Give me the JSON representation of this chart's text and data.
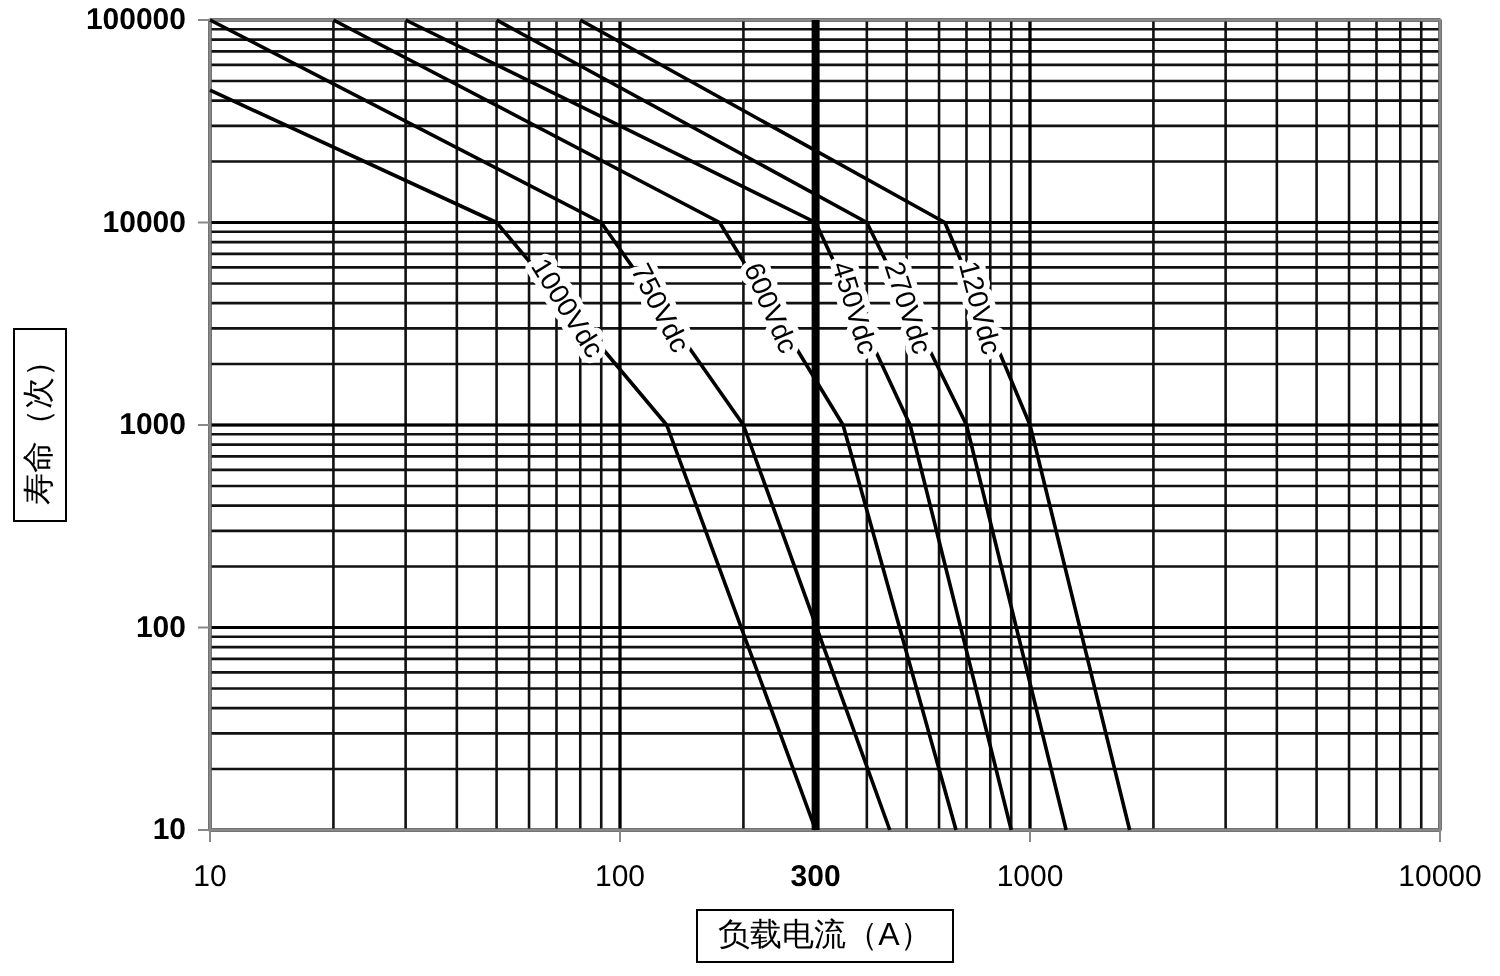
{
  "chart_data": {
    "type": "line",
    "xlabel": "负载电流（A）",
    "ylabel": "寿命（次）",
    "log": "xy",
    "grid": true,
    "marker": "none",
    "line_style": "solid",
    "xlim": [
      10,
      10000
    ],
    "xticks": [
      10,
      100,
      1000,
      10000
    ],
    "ylim": [
      10,
      100000
    ],
    "yticks": [
      10,
      100,
      1000,
      10000,
      100000
    ],
    "series": [
      {
        "name": "1000Vdc",
        "color": "#000000",
        "x": [
          10,
          50,
          130,
          300
        ],
        "values": [
          45000,
          10000,
          1000,
          10
        ]
      },
      {
        "name": "750Vdc",
        "color": "#000000",
        "x": [
          10,
          90,
          200,
          455
        ],
        "values": [
          100000,
          10000,
          1000,
          10
        ]
      },
      {
        "name": "600Vdc",
        "color": "#000000",
        "x": [
          20,
          175,
          350,
          660
        ],
        "values": [
          100000,
          10000,
          1000,
          10
        ]
      },
      {
        "name": "450Vdc",
        "color": "#000000",
        "x": [
          30,
          300,
          510,
          900
        ],
        "values": [
          100000,
          10000,
          1000,
          10
        ]
      },
      {
        "name": "270Vdc",
        "color": "#000000",
        "x": [
          50,
          400,
          700,
          1225
        ],
        "values": [
          100000,
          10000,
          1000,
          10
        ]
      },
      {
        "name": "120Vdc",
        "color": "#000000",
        "x": [
          80,
          620,
          1000,
          1750
        ],
        "values": [
          100000,
          10000,
          1000,
          10
        ]
      }
    ],
    "ref_lines": [
      {
        "axis": "x",
        "value": 300,
        "label": "300",
        "color": "#000000"
      }
    ]
  }
}
